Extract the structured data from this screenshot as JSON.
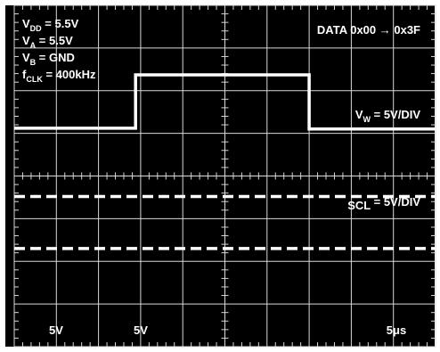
{
  "chart_data": {
    "type": "line",
    "title": "",
    "grid": true,
    "settings": [
      {
        "name": "V",
        "sub": "DD",
        "value": "5.5V"
      },
      {
        "name": "V",
        "sub": "A",
        "value": "5.5V"
      },
      {
        "name": "V",
        "sub": "B",
        "value": "GND"
      },
      {
        "name": "f",
        "sub": "CLK",
        "value": "400kHz"
      }
    ],
    "data_label": "DATA 0x00 → 0x3F",
    "channel_labels": [
      {
        "name": "V",
        "sub": "W",
        "value": "5V/DIV"
      },
      {
        "name": "SCL",
        "sub": "",
        "value": "5V/DIV"
      }
    ],
    "scale_labels": [
      "5V",
      "5V",
      "5μs"
    ],
    "x_divisions": 10,
    "y_divisions": 8,
    "series": [
      {
        "x": [
          0,
          2.88,
          2.88,
          7.0,
          7.0,
          10
        ],
        "y": [
          5.12,
          5.12,
          6.37,
          6.37,
          5.1,
          5.1
        ]
      },
      {
        "x": [
          0,
          10
        ],
        "y": [
          3.52,
          3.52
        ],
        "style": "dashed"
      },
      {
        "x": [
          0,
          10
        ],
        "y": [
          2.3,
          2.3
        ],
        "style": "dashed"
      }
    ]
  }
}
